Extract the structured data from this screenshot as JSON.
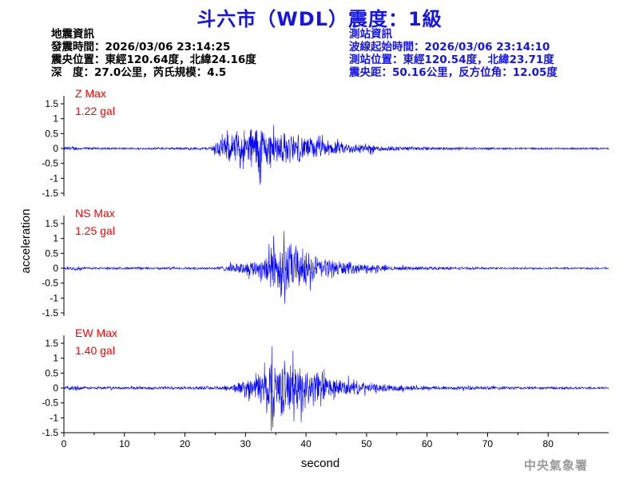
{
  "title": "斗六市（WDL）震度：1級",
  "info_left": {
    "heading": "地震資訊",
    "origin_time": "發震時間：2026/03/06 23:14:25",
    "epicenter": "震央位置：東經120.64度，北緯24.16度",
    "depth_mag": "深　度：27.0公里，芮氏規模：4.5"
  },
  "info_right": {
    "heading": "測站資訊",
    "wave_start": "波線起始時間：2026/03/06 23:14:10",
    "station_loc": "測站位置：東經120.54度，北緯23.71度",
    "distance": "震央距：50.16公里，反方位角：12.05度"
  },
  "watermark": "中央氣象署",
  "colors": {
    "title": "#1515e8",
    "trace": "#0000ff",
    "label": "#ff0000",
    "axis": "#000000"
  },
  "chart_data": {
    "type": "line",
    "xlabel": "second",
    "ylabel": "acceleration",
    "xlim": [
      0,
      90
    ],
    "ylim": [
      -1.5,
      1.5
    ],
    "x_ticks": [
      "0",
      "10",
      "20",
      "30",
      "40",
      "50",
      "60",
      "70",
      "80"
    ],
    "y_ticks": [
      "1.5",
      "1",
      "0.5",
      "0",
      "-0.5",
      "-1",
      "-1.5"
    ],
    "grid": false,
    "sample_interval_s": 0.05,
    "panels": [
      {
        "component": "Z",
        "label": "Z Max",
        "max_label": "1.22 gal",
        "peak": 1.22,
        "envelope": [
          [
            0,
            0.06
          ],
          [
            2,
            0.08
          ],
          [
            3,
            0.05
          ],
          [
            10,
            0.03
          ],
          [
            24,
            0.05
          ],
          [
            25,
            0.3
          ],
          [
            27,
            0.5
          ],
          [
            30,
            0.75
          ],
          [
            32,
            1.0
          ],
          [
            34,
            0.7
          ],
          [
            38,
            0.55
          ],
          [
            45,
            0.25
          ],
          [
            55,
            0.08
          ],
          [
            70,
            0.04
          ],
          [
            90,
            0.03
          ]
        ]
      },
      {
        "component": "NS",
        "label": "NS Max",
        "max_label": "1.25 gal",
        "peak": 1.25,
        "envelope": [
          [
            0,
            0.04
          ],
          [
            2,
            0.08
          ],
          [
            4,
            0.04
          ],
          [
            25,
            0.05
          ],
          [
            27,
            0.12
          ],
          [
            32,
            0.35
          ],
          [
            34,
            0.9
          ],
          [
            36,
            1.1
          ],
          [
            38,
            0.9
          ],
          [
            42,
            0.45
          ],
          [
            48,
            0.2
          ],
          [
            55,
            0.08
          ],
          [
            70,
            0.04
          ],
          [
            90,
            0.03
          ]
        ]
      },
      {
        "component": "EW",
        "label": "EW Max",
        "max_label": "1.40 gal",
        "peak": 1.4,
        "envelope": [
          [
            0,
            0.04
          ],
          [
            2,
            0.12
          ],
          [
            3,
            0.05
          ],
          [
            25,
            0.06
          ],
          [
            28,
            0.15
          ],
          [
            32,
            0.5
          ],
          [
            34,
            1.2
          ],
          [
            37,
            1.0
          ],
          [
            40,
            0.8
          ],
          [
            45,
            0.35
          ],
          [
            52,
            0.15
          ],
          [
            60,
            0.08
          ],
          [
            90,
            0.04
          ]
        ]
      }
    ]
  }
}
